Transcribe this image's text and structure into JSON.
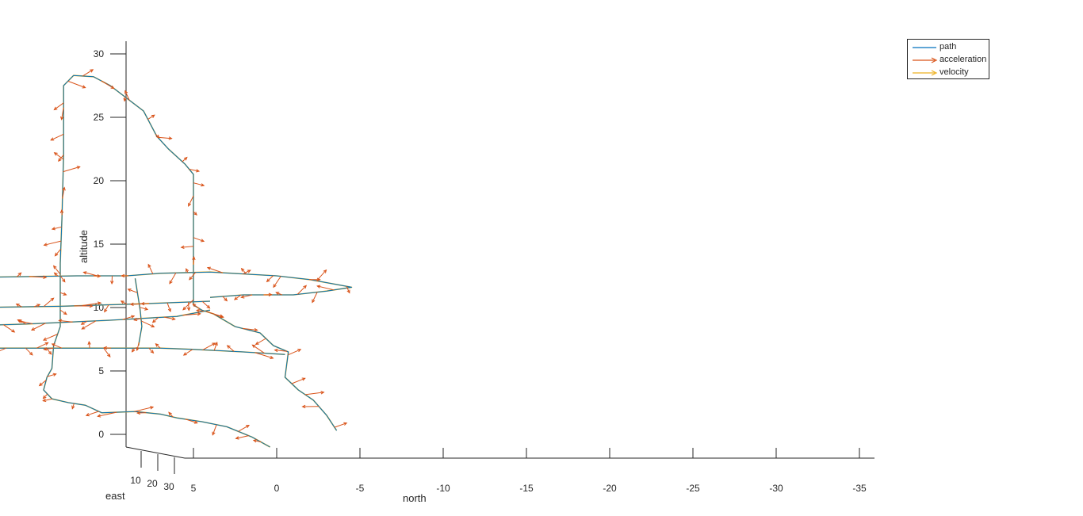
{
  "chart_data": {
    "type": "line",
    "xlabel": "north",
    "ylabel": "east",
    "zlabel": "altitude",
    "north_ticks": [
      "5",
      "0",
      "-5",
      "-10",
      "-15",
      "-20",
      "-25",
      "-30",
      "-35"
    ],
    "east_ticks": [
      "10",
      "20",
      "30"
    ],
    "altitude_ticks": [
      "0",
      "5",
      "10",
      "15",
      "20",
      "25",
      "30"
    ],
    "north_range": [
      5,
      -36
    ],
    "altitude_range": [
      -1.5,
      31
    ],
    "grid": false,
    "legend_position": "top-right",
    "legend": [
      "path",
      "acceleration",
      "velocity"
    ],
    "colors": {
      "path": "#0072BD",
      "acceleration": "#D95319",
      "velocity": "#EDB120"
    },
    "series": [
      {
        "name": "path",
        "points": [
          [
            0.4,
            -1.0
          ],
          [
            1.5,
            -0.2
          ],
          [
            3.0,
            0.6
          ],
          [
            4.5,
            1.0
          ],
          [
            6.0,
            1.3
          ],
          [
            7.0,
            1.6
          ],
          [
            8.5,
            1.8
          ],
          [
            10.5,
            1.7
          ],
          [
            11.5,
            2.3
          ],
          [
            12.5,
            2.5
          ],
          [
            13.5,
            2.8
          ],
          [
            14.0,
            3.5
          ],
          [
            13.8,
            4.5
          ],
          [
            13.5,
            5.2
          ],
          [
            13.4,
            7.0
          ],
          [
            13.0,
            8.5
          ],
          [
            13.0,
            10.5
          ],
          [
            13.0,
            13.5
          ],
          [
            12.9,
            17.0
          ],
          [
            12.8,
            22.0
          ],
          [
            12.8,
            27.5
          ],
          [
            12.2,
            28.3
          ],
          [
            11.0,
            28.2
          ],
          [
            10.0,
            27.5
          ],
          [
            9.0,
            26.5
          ],
          [
            8.0,
            25.5
          ],
          [
            7.2,
            23.5
          ],
          [
            6.5,
            22.5
          ],
          [
            5.5,
            21.3
          ],
          [
            5.0,
            20.5
          ],
          [
            5.0,
            15.0
          ],
          [
            5.0,
            10.2
          ],
          [
            4.5,
            9.8
          ],
          [
            3.8,
            9.5
          ],
          [
            2.5,
            8.5
          ],
          [
            1.0,
            8.0
          ],
          [
            0.2,
            7.0
          ],
          [
            -0.7,
            6.5
          ],
          [
            -0.5,
            4.5
          ],
          [
            -1.3,
            3.5
          ],
          [
            -2.2,
            2.7
          ],
          [
            -3.0,
            1.5
          ],
          [
            -3.6,
            0.3
          ]
        ]
      },
      {
        "name": "path",
        "points": [
          [
            -0.5,
            6.3
          ],
          [
            2.0,
            6.5
          ],
          [
            5.0,
            6.7
          ],
          [
            7.0,
            6.8
          ],
          [
            10.0,
            6.8
          ],
          [
            13.0,
            6.8
          ],
          [
            17.0,
            6.8
          ],
          [
            21.0,
            7.0
          ],
          [
            23.0,
            7.4
          ],
          [
            24.3,
            7.6
          ]
        ]
      },
      {
        "name": "path",
        "points": [
          [
            24.3,
            7.6
          ],
          [
            23.8,
            8.0
          ],
          [
            23.5,
            8.3
          ],
          [
            20.0,
            8.5
          ],
          [
            15.0,
            8.7
          ],
          [
            10.0,
            9.0
          ],
          [
            6.0,
            9.3
          ],
          [
            4.0,
            9.8
          ]
        ]
      },
      {
        "name": "path",
        "points": [
          [
            4.0,
            10.5
          ],
          [
            8.0,
            10.3
          ],
          [
            13.0,
            10.1
          ],
          [
            18.0,
            10.0
          ],
          [
            23.0,
            10.1
          ],
          [
            26.0,
            10.2
          ],
          [
            27.5,
            10.0
          ],
          [
            28.5,
            10.3
          ],
          [
            30.0,
            10.6
          ],
          [
            32.0,
            11.3
          ],
          [
            33.5,
            11.5
          ],
          [
            34.0,
            11.8
          ],
          [
            32.0,
            12.0
          ],
          [
            28.0,
            12.3
          ],
          [
            22.0,
            12.3
          ],
          [
            17.0,
            12.4
          ],
          [
            12.0,
            12.5
          ],
          [
            9.0,
            12.5
          ],
          [
            7.0,
            12.7
          ],
          [
            4.0,
            12.8
          ],
          [
            0.0,
            12.5
          ],
          [
            -2.0,
            12.2
          ],
          [
            -4.5,
            11.6
          ],
          [
            -3.0,
            11.3
          ],
          [
            -1.0,
            11.0
          ],
          [
            2.0,
            11.0
          ],
          [
            4.0,
            10.8
          ]
        ]
      },
      {
        "name": "path",
        "points": [
          [
            8.3,
            7.0
          ],
          [
            8.1,
            8.5
          ],
          [
            8.2,
            9.8
          ],
          [
            8.5,
            12.3
          ]
        ]
      }
    ]
  },
  "legend": {
    "path_label": "path",
    "acceleration_label": "acceleration",
    "velocity_label": "velocity"
  }
}
